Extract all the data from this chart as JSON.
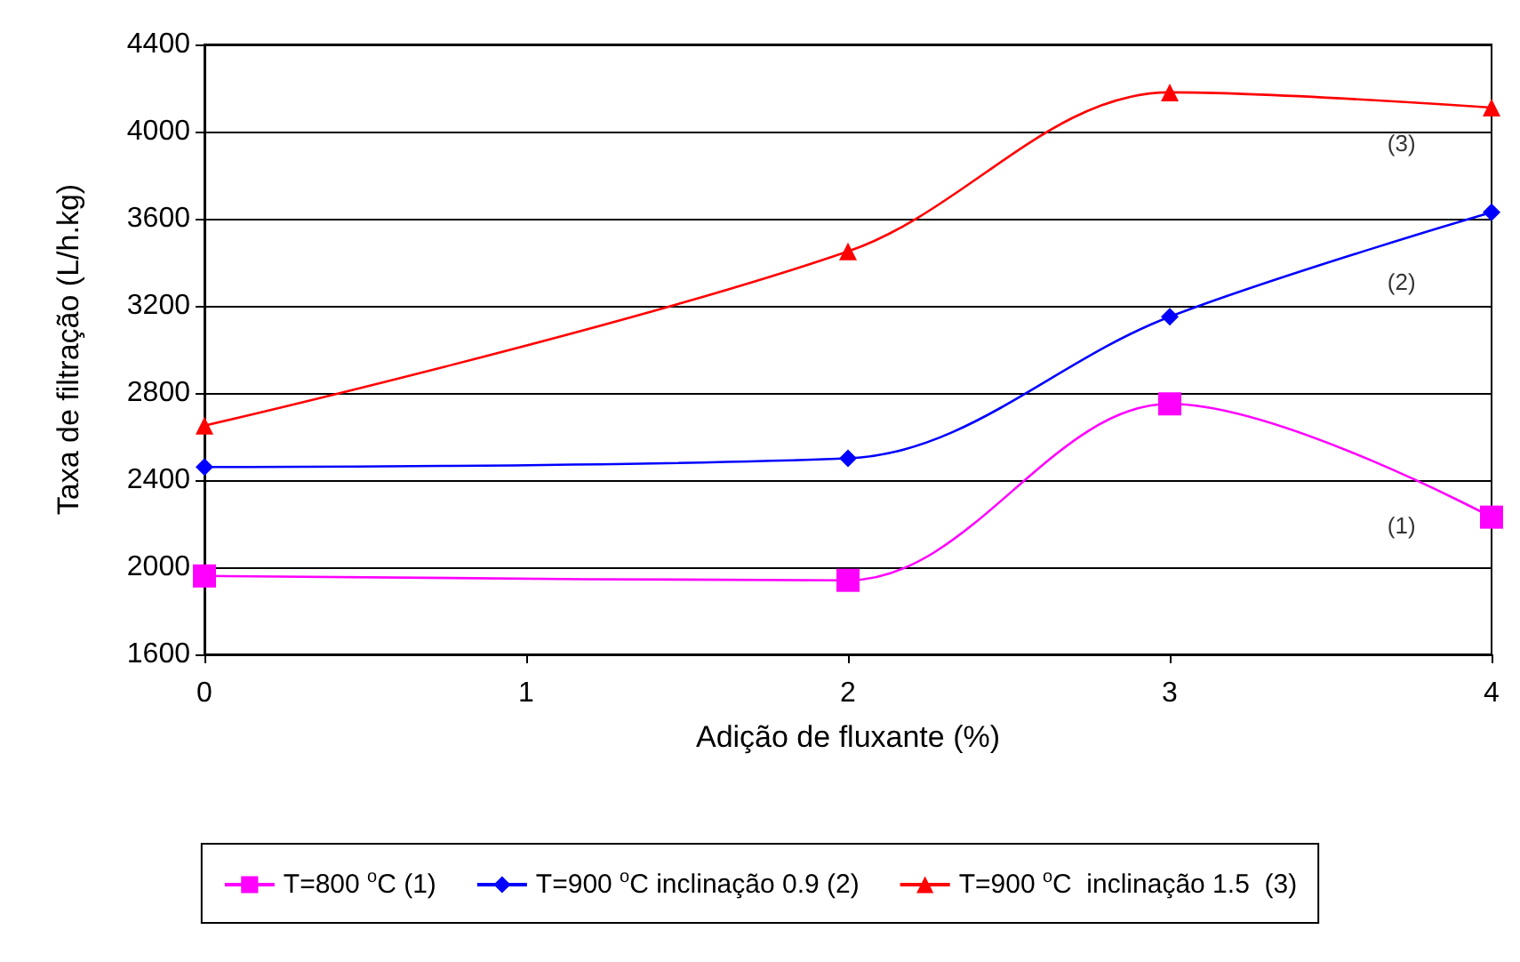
{
  "chart_data": {
    "type": "line",
    "xlabel": "Adição de fluxante (%)",
    "ylabel": "Taxa de filtração (L/h.kg)",
    "x": [
      0,
      2,
      3,
      4
    ],
    "xlim": [
      0,
      4
    ],
    "xticks": [
      0,
      1,
      2,
      3,
      4
    ],
    "ylim": [
      1600,
      4400
    ],
    "yticks": [
      1600,
      2000,
      2400,
      2800,
      3200,
      3600,
      4000,
      4400
    ],
    "grid": "y",
    "legend": "bottom",
    "series": [
      {
        "name": "T=800 $^{o}$C (1)",
        "color": "#ff00ff",
        "marker": "square",
        "values": [
          1960,
          1940,
          2750,
          2230
        ]
      },
      {
        "name": "T=900 $^{o}$C inclinação 0.9 (2)",
        "color": "#0000ff",
        "marker": "diamond",
        "values": [
          2460,
          2500,
          3150,
          3630
        ]
      },
      {
        "name": "T=900 $^{o}$C  inclinação 1.5  (3)",
        "color": "#ff0000",
        "marker": "triangle",
        "values": [
          2650,
          3450,
          4180,
          4110
        ]
      }
    ],
    "annotations": [
      "(1)",
      "(2)",
      "(3)"
    ]
  }
}
